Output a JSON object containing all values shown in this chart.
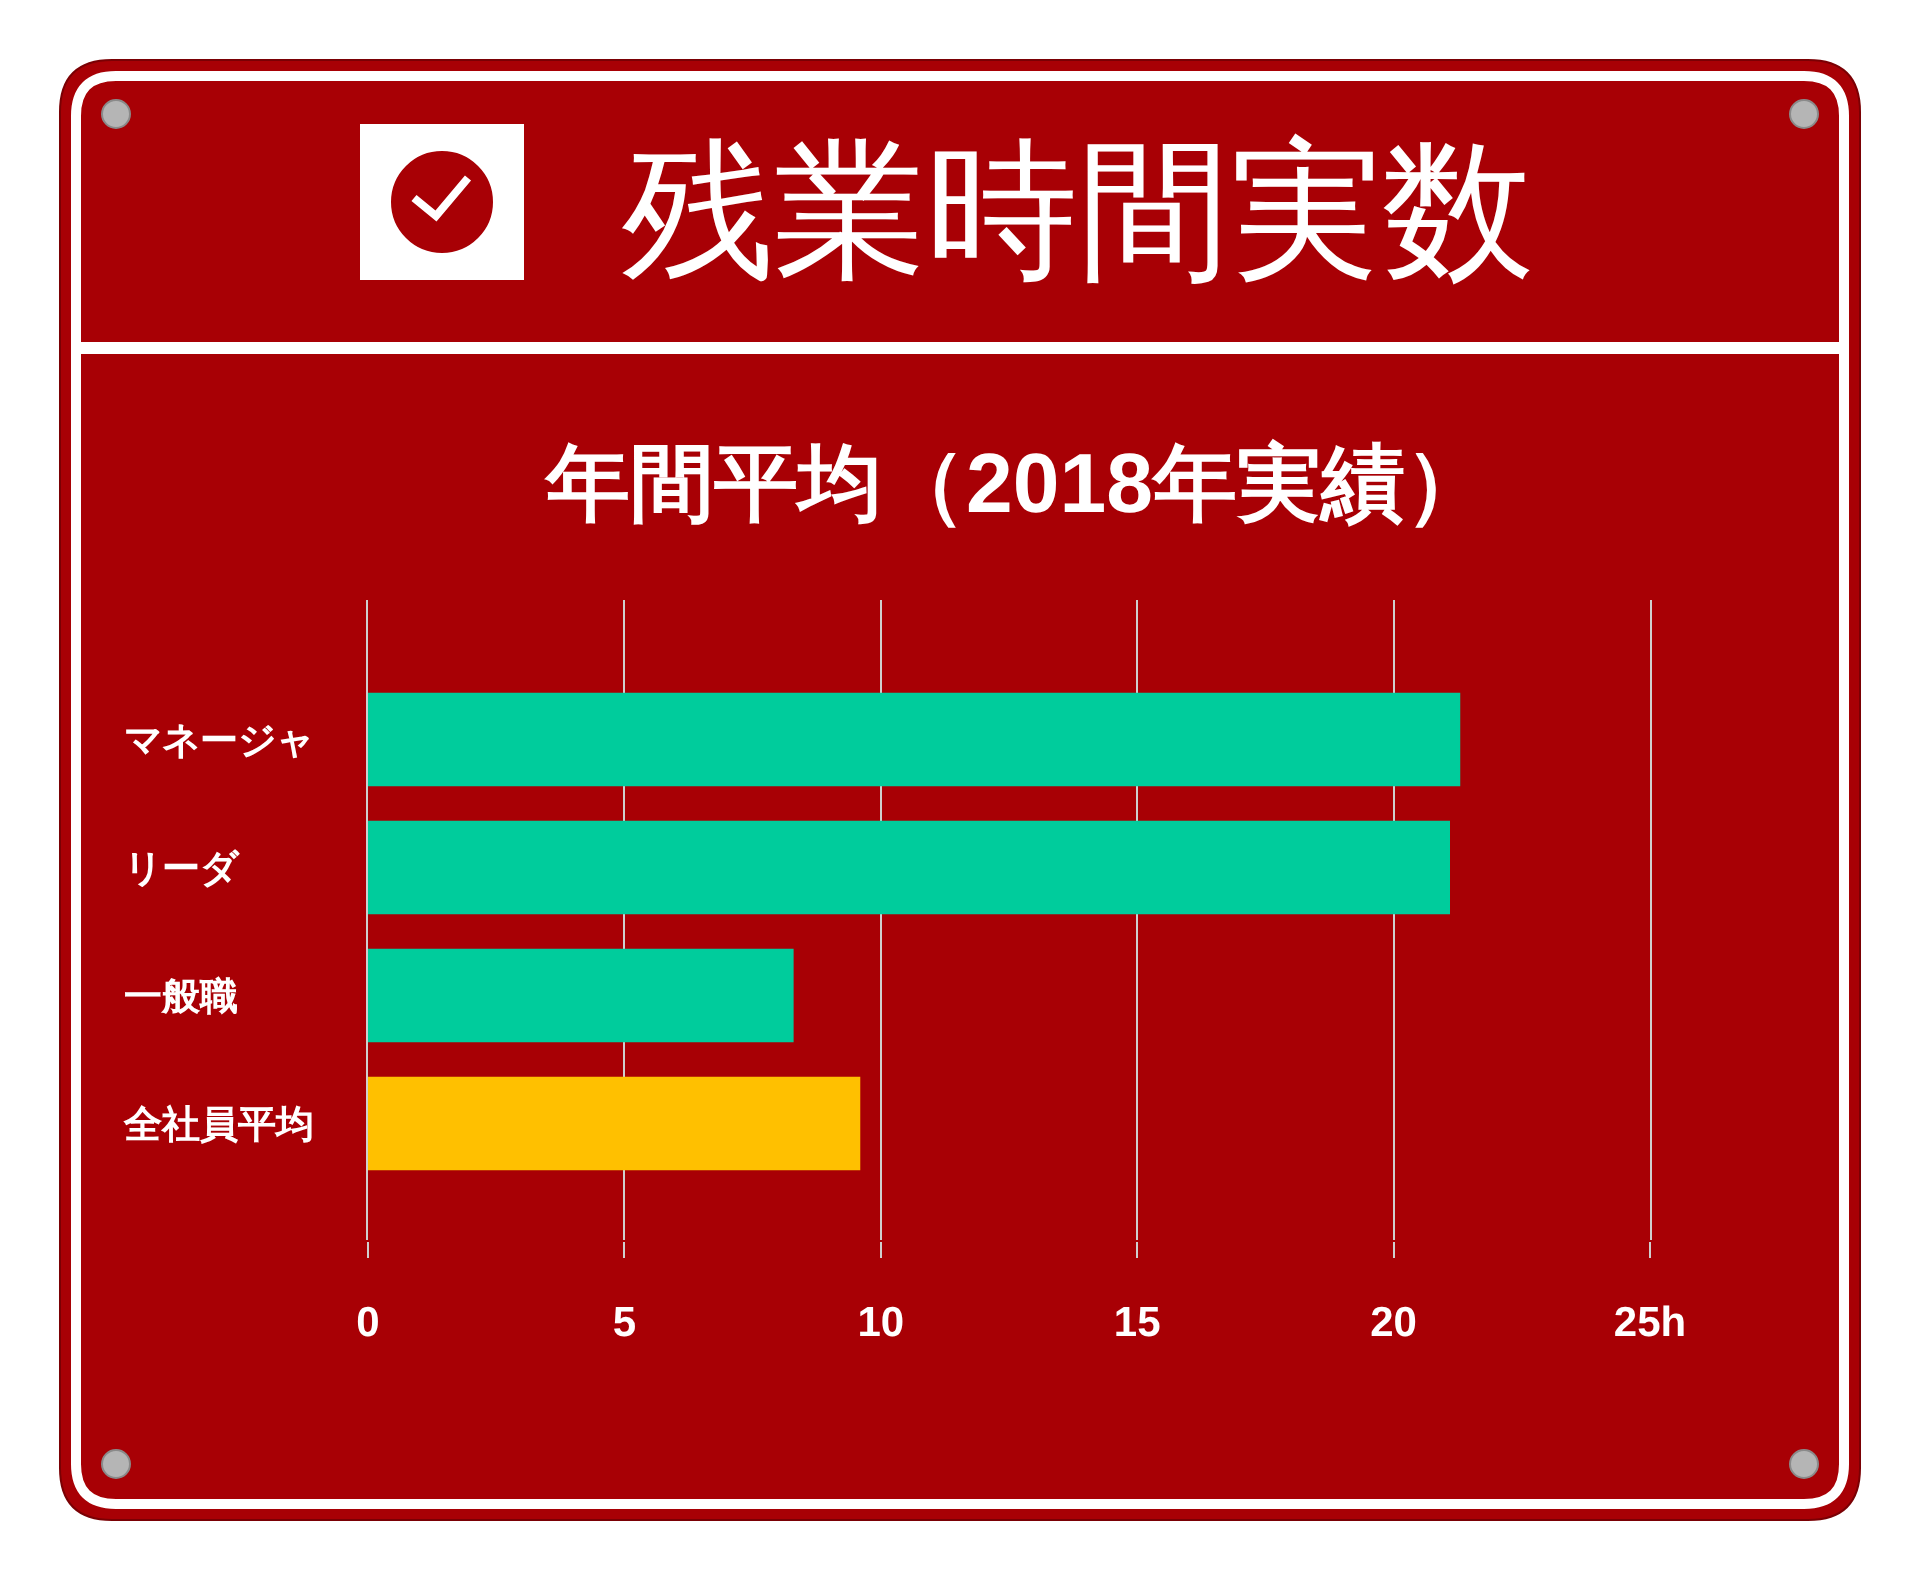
{
  "chart_data": {
    "type": "bar",
    "orientation": "horizontal",
    "title": "残業時間実数",
    "subtitle": "年間平均（2018年実績）",
    "categories": [
      "マネージャ",
      "リーダ",
      "一般職",
      "全社員平均"
    ],
    "values": [
      21.3,
      21.1,
      8.3,
      9.6
    ],
    "colors": [
      "#00cc9c",
      "#00cc9c",
      "#00cc9c",
      "#ffc000"
    ],
    "xlim": [
      0,
      25
    ],
    "xticks": [
      0,
      5,
      10,
      15,
      20,
      {
        "value": 25,
        "label": "25h"
      }
    ],
    "grid": "x"
  }
}
